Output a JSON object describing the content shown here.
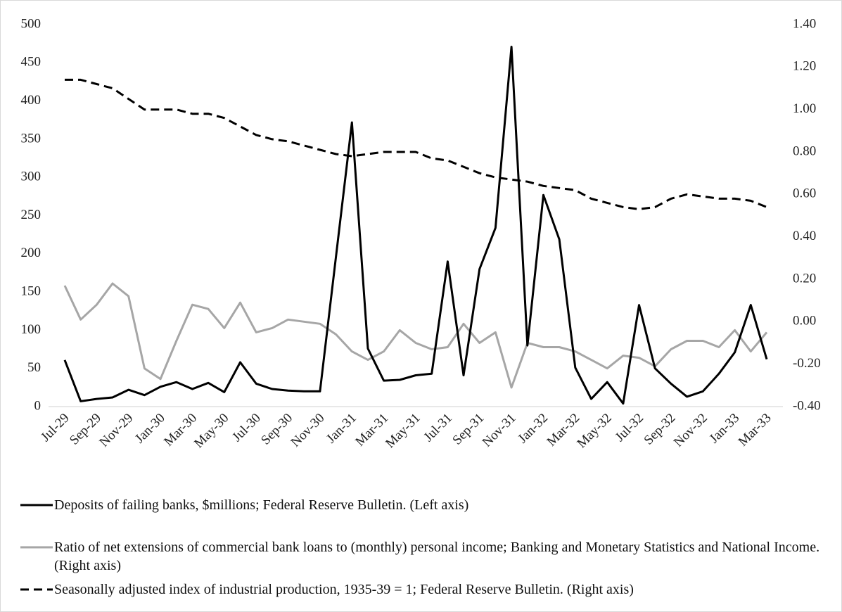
{
  "chart_data": {
    "type": "line",
    "categories": [
      "Jul-29",
      null,
      "Sep-29",
      null,
      "Nov-29",
      null,
      "Jan-30",
      null,
      "Mar-30",
      null,
      "May-30",
      null,
      "Jul-30",
      null,
      "Sep-30",
      null,
      "Nov-30",
      null,
      "Jan-31",
      null,
      "Mar-31",
      null,
      "May-31",
      null,
      "Jul-31",
      null,
      "Sep-31",
      null,
      "Nov-31",
      null,
      "Jan-32",
      null,
      "Mar-32",
      null,
      "May-32",
      null,
      "Jul-32",
      null,
      "Sep-32",
      null,
      "Nov-32",
      null,
      "Jan-33",
      null,
      "Mar-33"
    ],
    "series": [
      {
        "name": "Deposits of failing banks, $millions; Federal Reserve Bulletin. (Left axis)",
        "color": "#000000",
        "dash": false,
        "values": [
          61,
          7,
          10,
          12,
          22,
          15,
          26,
          32,
          23,
          31,
          19,
          58,
          30,
          23,
          21,
          20,
          20,
          196,
          372,
          76,
          34,
          35,
          41,
          43,
          190,
          41,
          180,
          234,
          471,
          80,
          277,
          219,
          51,
          10,
          32,
          4,
          133,
          50,
          30,
          13,
          20,
          43,
          71,
          133,
          62
        ]
      },
      {
        "name": "Ratio of net extensions of commercial bank loans to (monthly) personal income; Banking and Monetary Statistics and National Income. (Right axis)",
        "color": "#a6a6a6",
        "dash": false,
        "axis": "y2",
        "values": [
          0.17,
          0.01,
          0.08,
          0.18,
          0.12,
          -0.22,
          -0.27,
          -0.09,
          0.08,
          0.06,
          -0.03,
          0.09,
          -0.05,
          -0.03,
          0.01,
          0.0,
          -0.01,
          -0.06,
          -0.14,
          -0.18,
          -0.14,
          -0.04,
          -0.1,
          -0.13,
          -0.12,
          -0.01,
          -0.1,
          -0.05,
          -0.31,
          -0.1,
          -0.12,
          -0.12,
          -0.14,
          -0.18,
          -0.22,
          -0.16,
          -0.17,
          -0.21,
          -0.13,
          -0.09,
          -0.09,
          -0.12,
          -0.04,
          -0.14,
          -0.05
        ]
      },
      {
        "name": "Seasonally adjusted index of industrial production, 1935-39 = 1; Federal Reserve Bulletin. (Right axis)",
        "color": "#000000",
        "dash": true,
        "axis": "y2",
        "values": [
          1.14,
          1.14,
          1.12,
          1.1,
          1.05,
          1.0,
          1.0,
          1.0,
          0.98,
          0.98,
          0.96,
          0.92,
          0.88,
          0.86,
          0.85,
          0.83,
          0.81,
          0.79,
          0.78,
          0.79,
          0.8,
          0.8,
          0.8,
          0.77,
          0.76,
          0.73,
          0.7,
          0.68,
          0.67,
          0.66,
          0.64,
          0.63,
          0.62,
          0.58,
          0.56,
          0.54,
          0.53,
          0.54,
          0.58,
          0.6,
          0.59,
          0.58,
          0.58,
          0.57,
          0.54
        ]
      }
    ],
    "ylim": [
      0,
      500
    ],
    "yticks": [
      0,
      50,
      100,
      150,
      200,
      250,
      300,
      350,
      400,
      450,
      500
    ],
    "y2lim": [
      -0.4,
      1.4
    ],
    "y2ticks": [
      {
        "value": -0.4,
        "label": "-0.40"
      },
      {
        "value": -0.2,
        "label": "-0.20"
      },
      {
        "value": 0,
        "label": "0.00"
      },
      {
        "value": 0.2,
        "label": "0.20"
      },
      {
        "value": 0.4,
        "label": "0.40"
      },
      {
        "value": 0.6,
        "label": "0.60"
      },
      {
        "value": 0.8,
        "label": "0.80"
      },
      {
        "value": 1.0,
        "label": "1.00"
      },
      {
        "value": 1.2,
        "label": "1.20"
      },
      {
        "value": 1.4,
        "label": "1.40"
      }
    ],
    "grid": false,
    "legend": "bottom"
  }
}
